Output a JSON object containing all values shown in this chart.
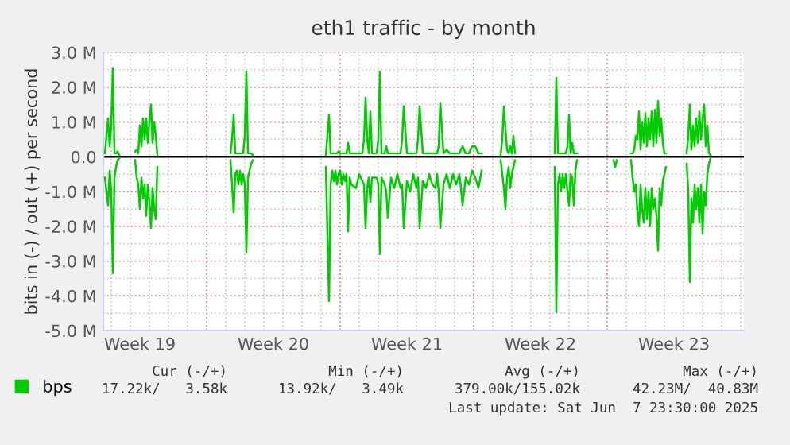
{
  "chart_data": {
    "type": "line",
    "title": "eth1 traffic - by month",
    "ylabel": "bits in (-) / out (+) per second",
    "x": [
      "2025-05-06T16:00",
      "2025-05-06T18:00",
      "2025-05-06T20:00",
      "2025-05-06T22:00",
      "2025-05-07T00:00",
      "2025-05-07T02:00",
      "2025-05-07T04:00",
      "2025-05-07T06:00",
      "2025-05-07T08:00",
      "2025-05-07T10:00",
      "2025-05-07T12:00",
      "2025-05-08T06:00",
      "2025-05-08T08:00",
      "2025-05-08T10:00",
      "2025-05-08T12:00",
      "2025-05-08T14:00",
      "2025-05-08T16:00",
      "2025-05-08T18:00",
      "2025-05-08T20:00",
      "2025-05-08T22:00",
      "2025-05-09T00:00",
      "2025-05-09T02:00",
      "2025-05-09T04:00",
      "2025-05-09T06:00",
      "2025-05-09T08:00",
      "2025-05-09T10:00",
      "2025-05-09T12:00",
      "2025-05-13T06:00",
      "2025-05-13T08:00",
      "2025-05-13T10:00",
      "2025-05-13T12:00",
      "2025-05-13T14:00",
      "2025-05-13T16:00",
      "2025-05-13T18:00",
      "2025-05-13T20:00",
      "2025-05-13T22:00",
      "2025-05-14T00:00",
      "2025-05-14T02:00",
      "2025-05-14T04:00",
      "2025-05-14T06:00",
      "2025-05-14T08:00",
      "2025-05-14T10:00",
      "2025-05-14T12:00",
      "2025-05-18T06:00",
      "2025-05-18T10:00",
      "2025-05-18T12:00",
      "2025-05-18T14:00",
      "2025-05-18T16:00",
      "2025-05-18T18:00",
      "2025-05-18T20:00",
      "2025-05-18T22:00",
      "2025-05-19T00:00",
      "2025-05-19T02:00",
      "2025-05-19T04:00",
      "2025-05-19T06:00",
      "2025-05-19T08:00",
      "2025-05-19T10:00",
      "2025-05-19T12:00",
      "2025-05-19T14:00",
      "2025-05-19T20:00",
      "2025-05-20T00:00",
      "2025-05-20T04:00",
      "2025-05-20T06:00",
      "2025-05-20T08:00",
      "2025-05-20T10:00",
      "2025-05-20T12:00",
      "2025-05-20T14:00",
      "2025-05-20T16:00",
      "2025-05-20T22:00",
      "2025-05-21T00:00",
      "2025-05-21T02:00",
      "2025-05-21T04:00",
      "2025-05-21T08:00",
      "2025-05-21T10:00",
      "2025-05-21T12:00",
      "2025-05-21T16:00",
      "2025-05-21T20:00",
      "2025-05-22T00:00",
      "2025-05-22T04:00",
      "2025-05-22T06:00",
      "2025-05-22T08:00",
      "2025-05-22T12:00",
      "2025-05-22T16:00",
      "2025-05-22T20:00",
      "2025-05-23T00:00",
      "2025-05-23T02:00",
      "2025-05-23T04:00",
      "2025-05-23T08:00",
      "2025-05-23T12:00",
      "2025-05-23T16:00",
      "2025-05-23T20:00",
      "2025-05-24T00:00",
      "2025-05-24T02:00",
      "2025-05-24T04:00",
      "2025-05-24T06:00",
      "2025-05-24T10:00",
      "2025-05-24T14:00",
      "2025-05-24T18:00",
      "2025-05-24T22:00",
      "2025-05-25T02:00",
      "2025-05-25T06:00",
      "2025-05-25T08:00",
      "2025-05-25T10:00",
      "2025-05-25T14:00",
      "2025-05-25T18:00",
      "2025-05-25T22:00",
      "2025-05-26T02:00",
      "2025-05-26T06:00",
      "2025-05-26T10:00",
      "2025-05-26T12:00",
      "2025-05-27T10:00",
      "2025-05-27T12:00",
      "2025-05-27T14:00",
      "2025-05-27T16:00",
      "2025-05-27T18:00",
      "2025-05-27T20:00",
      "2025-05-27T22:00",
      "2025-05-28T00:00",
      "2025-05-28T02:00",
      "2025-05-28T04:00",
      "2025-05-28T06:00",
      "2025-05-29T06:00",
      "2025-05-29T08:00",
      "2025-05-29T10:00",
      "2025-05-29T12:00",
      "2025-05-30T06:00",
      "2025-05-30T08:00",
      "2025-05-30T10:00",
      "2025-05-30T12:00",
      "2025-05-30T14:00",
      "2025-05-30T16:00",
      "2025-05-30T18:00",
      "2025-05-30T20:00",
      "2025-05-30T22:00",
      "2025-05-31T00:00",
      "2025-05-31T02:00",
      "2025-05-31T04:00",
      "2025-05-31T06:00",
      "2025-05-31T08:00",
      "2025-05-31T10:00",
      "2025-05-31T12:00",
      "2025-06-02T08:00",
      "2025-06-02T10:00",
      "2025-06-02T12:00",
      "2025-06-02T14:00",
      "2025-06-03T06:00",
      "2025-06-03T08:00",
      "2025-06-03T10:00",
      "2025-06-03T12:00",
      "2025-06-03T14:00",
      "2025-06-03T16:00",
      "2025-06-03T18:00",
      "2025-06-03T20:00",
      "2025-06-03T22:00",
      "2025-06-04T00:00",
      "2025-06-04T02:00",
      "2025-06-04T04:00",
      "2025-06-04T06:00",
      "2025-06-04T08:00",
      "2025-06-04T10:00",
      "2025-06-04T12:00",
      "2025-06-04T14:00",
      "2025-06-04T16:00",
      "2025-06-04T18:00",
      "2025-06-04T20:00",
      "2025-06-04T22:00",
      "2025-06-05T00:00",
      "2025-06-05T02:00",
      "2025-06-05T04:00",
      "2025-06-06T04:00",
      "2025-06-06T06:00",
      "2025-06-06T08:00",
      "2025-06-06T10:00",
      "2025-06-06T12:00",
      "2025-06-06T14:00",
      "2025-06-06T16:00",
      "2025-06-06T18:00",
      "2025-06-06T20:00",
      "2025-06-06T22:00",
      "2025-06-07T00:00",
      "2025-06-07T02:00",
      "2025-06-07T04:00",
      "2025-06-07T06:00",
      "2025-06-07T08:00",
      "2025-06-07T10:00"
    ],
    "series": [
      {
        "name": "bps",
        "color": "#00cc00",
        "values": [
          0.1,
          0.6,
          1.1,
          0.3,
          0.9,
          2.55,
          0.1,
          0.1,
          0.15,
          0.05,
          null,
          0.15,
          0.2,
          0.1,
          0.9,
          0.3,
          1.1,
          0.5,
          1.1,
          0.4,
          1.0,
          1.5,
          0.4,
          1.0,
          0.6,
          0.05,
          null,
          0.1,
          0.5,
          1.2,
          0.1,
          0.1,
          0.1,
          0.1,
          0.1,
          0.1,
          0.6,
          2.45,
          0.1,
          0.1,
          0.1,
          0.05,
          null,
          0.05,
          1.2,
          0.1,
          0.1,
          0.1,
          0.1,
          0.1,
          0.15,
          0.1,
          0.1,
          0.1,
          0.1,
          0.1,
          0.4,
          0.1,
          0.1,
          0.1,
          0.1,
          0.1,
          0.5,
          1.7,
          0.5,
          0.1,
          1.3,
          0.1,
          0.1,
          0.5,
          2.45,
          0.1,
          0.1,
          0.3,
          0.1,
          0.1,
          0.1,
          0.1,
          0.1,
          0.5,
          1.45,
          0.1,
          0.1,
          0.1,
          0.1,
          0.5,
          1.45,
          0.1,
          0.1,
          0.1,
          0.1,
          0.1,
          0.1,
          0.3,
          1.55,
          0.1,
          0.2,
          0.1,
          0.1,
          0.1,
          0.1,
          0.2,
          0.3,
          0.1,
          0.1,
          0.3,
          0.3,
          0.1,
          0.1,
          null,
          0.05,
          0.5,
          1.45,
          0.8,
          0.2,
          0.1,
          0.3,
          0.1,
          0.6,
          0.1,
          null,
          null,
          null,
          null,
          null,
          0.1,
          2.27,
          0.1,
          0.1,
          0.1,
          0.1,
          0.1,
          0.1,
          0.3,
          1.2,
          0.1,
          0.4,
          0.1,
          0.1,
          0.1,
          null,
          null,
          null,
          null,
          null,
          0.1,
          0.1,
          0.2,
          0.6,
          0.5,
          1.3,
          0.2,
          1.0,
          0.4,
          1.25,
          0.3,
          1.1,
          0.5,
          1.3,
          0.3,
          1.35,
          0.4,
          1.6,
          0.6,
          1.1,
          0.4,
          0.1,
          0.1,
          null,
          0.1,
          0.6,
          1.5,
          0.2,
          0.9,
          0.3,
          1.1,
          0.4,
          1.3,
          0.5,
          1.1,
          1.5,
          0.3,
          0.9,
          0.1,
          0.05
        ]
      },
      {
        "color": "#00cc00",
        "values": [
          -0.6,
          -1.0,
          -1.4,
          -0.4,
          -1.0,
          -3.35,
          -0.6,
          -0.3,
          -0.1,
          -0.05,
          null,
          -0.1,
          -0.6,
          -0.8,
          -1.5,
          -0.6,
          -1.2,
          -0.8,
          -1.7,
          -0.8,
          -1.3,
          -2.05,
          -0.9,
          -1.5,
          -1.8,
          -0.3,
          null,
          -0.1,
          -0.8,
          -1.6,
          -0.5,
          -0.4,
          -0.8,
          -0.4,
          -0.8,
          -0.5,
          -0.8,
          -2.75,
          -0.6,
          -0.4,
          -0.2,
          -0.1,
          null,
          -0.3,
          -4.15,
          -0.8,
          -0.4,
          -0.7,
          -0.4,
          -0.8,
          -0.5,
          -0.4,
          -0.8,
          -0.5,
          -0.7,
          -0.5,
          -2.15,
          -0.6,
          -0.8,
          -0.9,
          -0.5,
          -0.7,
          -0.8,
          -2.05,
          -0.9,
          -0.6,
          -1.3,
          -0.6,
          -0.6,
          -0.8,
          -2.8,
          -0.6,
          -0.8,
          -1.0,
          -1.75,
          -0.6,
          -0.9,
          -0.5,
          -0.9,
          -0.8,
          -2.05,
          -0.7,
          -1.0,
          -0.5,
          -0.9,
          -0.6,
          -2.05,
          -0.7,
          -0.9,
          -0.5,
          -0.8,
          -0.9,
          -0.5,
          -1.0,
          -2.05,
          -0.8,
          -0.5,
          -0.9,
          -0.5,
          -0.8,
          -0.5,
          -0.9,
          -1.4,
          -0.6,
          -0.8,
          -0.4,
          -0.6,
          -0.9,
          -0.4,
          null,
          -0.1,
          -0.5,
          -0.9,
          -1.5,
          -0.6,
          -0.3,
          -0.9,
          -0.5,
          -0.3,
          -0.1,
          null,
          null,
          null,
          null,
          null,
          -0.3,
          -4.47,
          -0.8,
          -0.5,
          -1.0,
          -0.5,
          -0.9,
          -0.5,
          -1.0,
          -1.4,
          -0.5,
          -0.6,
          -1.4,
          -0.4,
          -0.1,
          null,
          -0.1,
          -0.3,
          -0.1,
          null,
          -0.1,
          -0.6,
          -1.0,
          -0.8,
          -1.6,
          -2.0,
          -0.8,
          -1.5,
          -1.9,
          -0.9,
          -1.8,
          -1.0,
          -2.0,
          -0.9,
          -1.5,
          -1.2,
          -1.7,
          -2.7,
          -0.9,
          -1.4,
          -0.7,
          -0.5,
          -0.3,
          null,
          -0.2,
          -1.0,
          -3.6,
          -1.2,
          -1.9,
          -0.8,
          -1.5,
          -0.9,
          -1.9,
          -0.8,
          -2.2,
          -1.0,
          -1.4,
          -0.5,
          -0.2,
          -0.05
        ]
      }
    ],
    "xlim": [
      "2025-05-06T14:00",
      "2025-06-09T04:00"
    ],
    "xticks": [
      {
        "value": "2025-05-08T12:00",
        "label": "Week 19"
      },
      {
        "value": "2025-05-12T00:00",
        "label": null
      },
      {
        "value": "2025-05-15T12:00",
        "label": "Week 20"
      },
      {
        "value": "2025-05-19T00:00",
        "label": null
      },
      {
        "value": "2025-05-22T12:00",
        "label": "Week 21"
      },
      {
        "value": "2025-05-26T00:00",
        "label": null
      },
      {
        "value": "2025-05-29T12:00",
        "label": "Week 22"
      },
      {
        "value": "2025-06-02T00:00",
        "label": null
      },
      {
        "value": "2025-06-05T12:00",
        "label": "Week 23"
      }
    ],
    "ylim": [
      -5,
      3
    ],
    "yticks": [
      {
        "value": -5,
        "label": "-5.0 M"
      },
      {
        "value": -4,
        "label": "-4.0 M"
      },
      {
        "value": -3,
        "label": "-3.0 M"
      },
      {
        "value": -2,
        "label": "-2.0 M"
      },
      {
        "value": -1,
        "label": "-1.0 M"
      },
      {
        "value": 0,
        "label": "0.0"
      },
      {
        "value": 1,
        "label": "1.0 M"
      },
      {
        "value": 2,
        "label": "2.0 M"
      },
      {
        "value": 3,
        "label": "3.0 M"
      }
    ],
    "ref_lines": [
      {
        "axis": "y",
        "value": 0,
        "color": "#000000"
      }
    ],
    "grid": true,
    "legend": "bottom left",
    "marker": "none",
    "line_style": "solid",
    "annotations": [
      "Cur (-/+)",
      "Min (-/+)",
      "Avg (-/+)",
      "Max (-/+)",
      "17.22k/   3.58k",
      "13.92k/   3.49k",
      "379.00k/155.02k",
      "42.23M/  40.83M",
      "Last update: Sat Jun  7 23:30:00 2025"
    ]
  }
}
